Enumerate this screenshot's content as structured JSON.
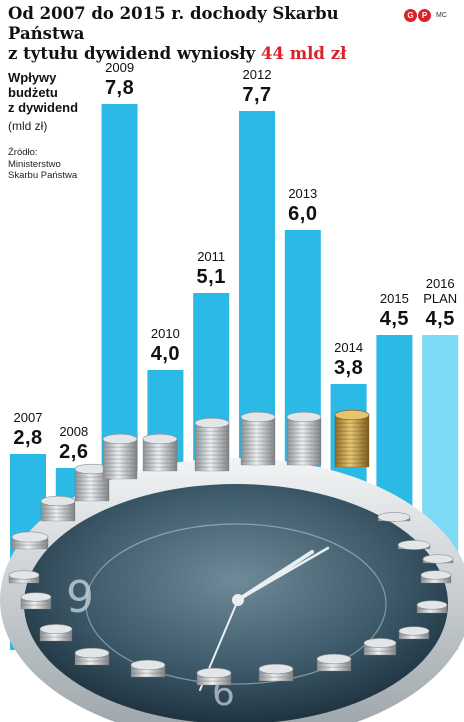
{
  "header": {
    "title_line1": "Od 2007 do 2015 r. dochody Skarbu Państwa",
    "title_line2_prefix": "z tytułu dywidend wyniosły",
    "title_highlight": "44 mld zł",
    "brand_initials": [
      "G",
      "P"
    ],
    "author_initials": "MC"
  },
  "legend": {
    "label_lines": [
      "Wpływy",
      "budżetu",
      "z dywidend"
    ],
    "unit": "(mld zł)",
    "source_lines": [
      "Źródło:",
      "Ministerstwo",
      "Skarbu Państwa"
    ]
  },
  "colors": {
    "bar": "#2bb9e6",
    "bar_plan": "#7dd9f5",
    "highlight": "#d8232a",
    "clock_face": "#3f5c6c",
    "coin_silver": "#c9ccce",
    "coin_gold": "#c9a24c"
  },
  "chart_data": {
    "type": "bar",
    "title": "Od 2007 do 2015 r. dochody Skarbu Państwa z tytułu dywidend wyniosły 44 mld zł",
    "ylabel": "Wpływy budżetu z dywidend (mld zł)",
    "categories": [
      "2007",
      "2008",
      "2009",
      "2010",
      "2011",
      "2012",
      "2013",
      "2014",
      "2015",
      "2016 PLAN"
    ],
    "values": [
      2.8,
      2.6,
      7.8,
      4.0,
      5.1,
      7.7,
      6.0,
      3.8,
      4.5,
      4.5
    ],
    "value_labels": [
      "2,8",
      "2,6",
      "7,8",
      "4,0",
      "5,1",
      "7,7",
      "6,0",
      "3,8",
      "4,5",
      "4,5"
    ],
    "plan_flags": [
      false,
      false,
      false,
      false,
      false,
      false,
      false,
      false,
      false,
      true
    ],
    "ylim": [
      0,
      7.8
    ],
    "grid": false
  }
}
